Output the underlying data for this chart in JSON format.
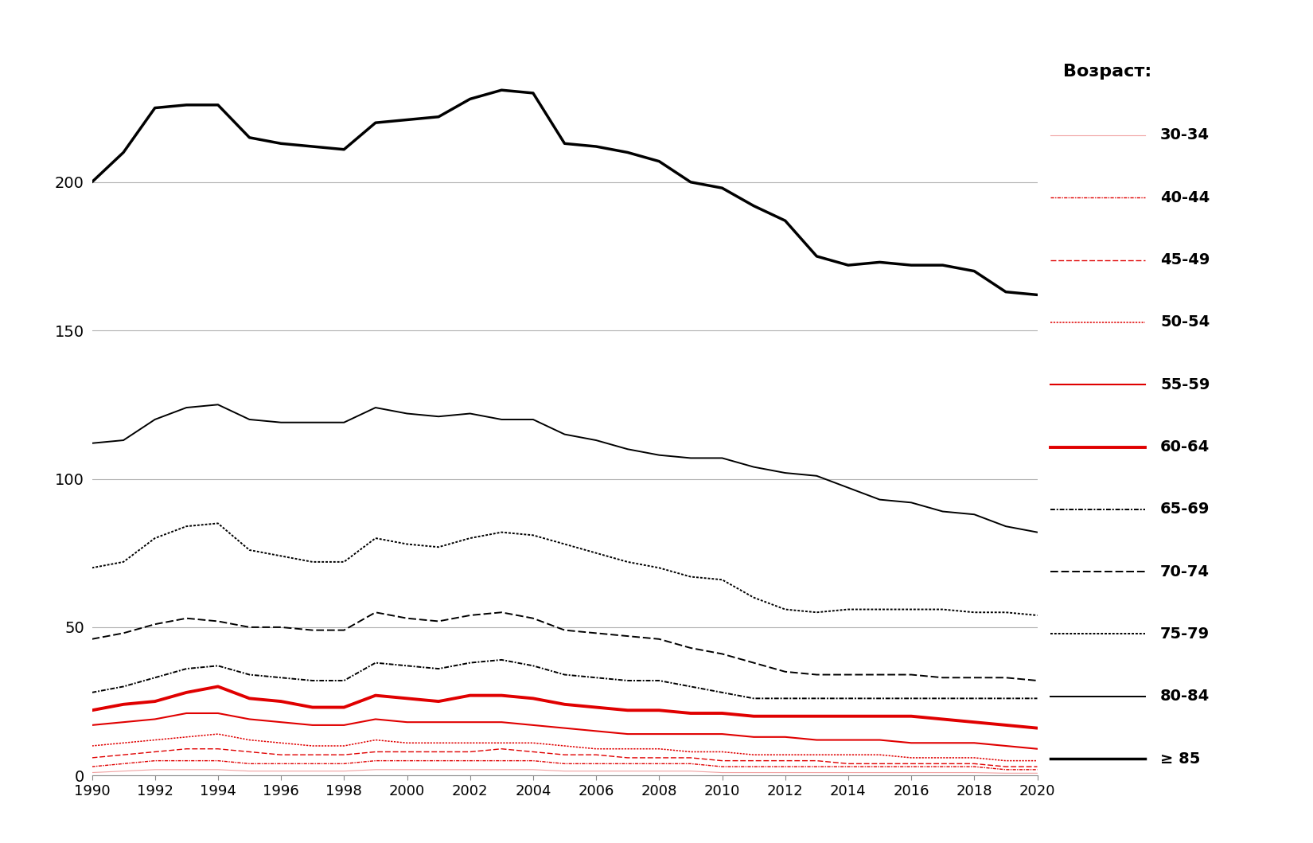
{
  "years": [
    1990,
    1991,
    1992,
    1993,
    1994,
    1995,
    1996,
    1997,
    1998,
    1999,
    2000,
    2001,
    2002,
    2003,
    2004,
    2005,
    2006,
    2007,
    2008,
    2009,
    2010,
    2011,
    2012,
    2013,
    2014,
    2015,
    2016,
    2017,
    2018,
    2019,
    2020
  ],
  "series": {
    "ge85": [
      200,
      210,
      225,
      226,
      226,
      215,
      213,
      212,
      211,
      220,
      221,
      222,
      228,
      231,
      230,
      213,
      212,
      210,
      207,
      200,
      198,
      192,
      187,
      175,
      172,
      173,
      172,
      172,
      170,
      163,
      162
    ],
    "s8084": [
      112,
      113,
      120,
      124,
      125,
      120,
      119,
      119,
      119,
      124,
      122,
      121,
      122,
      120,
      120,
      115,
      113,
      110,
      108,
      107,
      107,
      104,
      102,
      101,
      97,
      93,
      92,
      89,
      88,
      84,
      82
    ],
    "s7579": [
      70,
      72,
      80,
      84,
      85,
      76,
      74,
      72,
      72,
      80,
      78,
      77,
      80,
      82,
      81,
      78,
      75,
      72,
      70,
      67,
      66,
      60,
      56,
      55,
      56,
      56,
      56,
      56,
      55,
      55,
      54
    ],
    "s7074": [
      46,
      48,
      51,
      53,
      52,
      50,
      50,
      49,
      49,
      55,
      53,
      52,
      54,
      55,
      53,
      49,
      48,
      47,
      46,
      43,
      41,
      38,
      35,
      34,
      34,
      34,
      34,
      33,
      33,
      33,
      32
    ],
    "s6569": [
      28,
      30,
      33,
      36,
      37,
      34,
      33,
      32,
      32,
      38,
      37,
      36,
      38,
      39,
      37,
      34,
      33,
      32,
      32,
      30,
      28,
      26,
      26,
      26,
      26,
      26,
      26,
      26,
      26,
      26,
      26
    ],
    "s6064": [
      22,
      24,
      25,
      28,
      30,
      26,
      25,
      23,
      23,
      27,
      26,
      25,
      27,
      27,
      26,
      24,
      23,
      22,
      22,
      21,
      21,
      20,
      20,
      20,
      20,
      20,
      20,
      19,
      18,
      17,
      16
    ],
    "s5559": [
      17,
      18,
      19,
      21,
      21,
      19,
      18,
      17,
      17,
      19,
      18,
      18,
      18,
      18,
      17,
      16,
      15,
      14,
      14,
      14,
      14,
      13,
      13,
      12,
      12,
      12,
      11,
      11,
      11,
      10,
      9
    ],
    "s5054": [
      10,
      11,
      12,
      13,
      14,
      12,
      11,
      10,
      10,
      12,
      11,
      11,
      11,
      11,
      11,
      10,
      9,
      9,
      9,
      8,
      8,
      7,
      7,
      7,
      7,
      7,
      6,
      6,
      6,
      5,
      5
    ],
    "s4549": [
      6,
      7,
      8,
      9,
      9,
      8,
      7,
      7,
      7,
      8,
      8,
      8,
      8,
      9,
      8,
      7,
      7,
      6,
      6,
      6,
      5,
      5,
      5,
      5,
      4,
      4,
      4,
      4,
      4,
      3,
      3
    ],
    "s4044": [
      3,
      4,
      5,
      5,
      5,
      4,
      4,
      4,
      4,
      5,
      5,
      5,
      5,
      5,
      5,
      4,
      4,
      4,
      4,
      4,
      3,
      3,
      3,
      3,
      3,
      3,
      3,
      3,
      3,
      2,
      2
    ],
    "s3034": [
      1,
      1.5,
      2,
      2,
      2,
      1.5,
      1.5,
      1.5,
      1.5,
      2,
      2,
      2,
      2,
      2,
      2,
      1.5,
      1.5,
      1.5,
      1.5,
      1.5,
      1,
      1,
      1,
      1,
      1,
      1,
      1,
      1,
      1,
      0.8,
      0.8
    ]
  },
  "ylim": [
    0,
    250
  ],
  "yticks": [
    0,
    50,
    100,
    150,
    200
  ],
  "xticks": [
    1990,
    1992,
    1994,
    1996,
    1998,
    2000,
    2002,
    2004,
    2006,
    2008,
    2010,
    2012,
    2014,
    2016,
    2018,
    2020
  ],
  "legend_title": "Возраст:",
  "red_bright": "#e00000",
  "red_light": "#f08080",
  "red_medium": "#e87070",
  "black": "#000000",
  "grid_color": "#b0b0b0",
  "spine_color": "#888888"
}
